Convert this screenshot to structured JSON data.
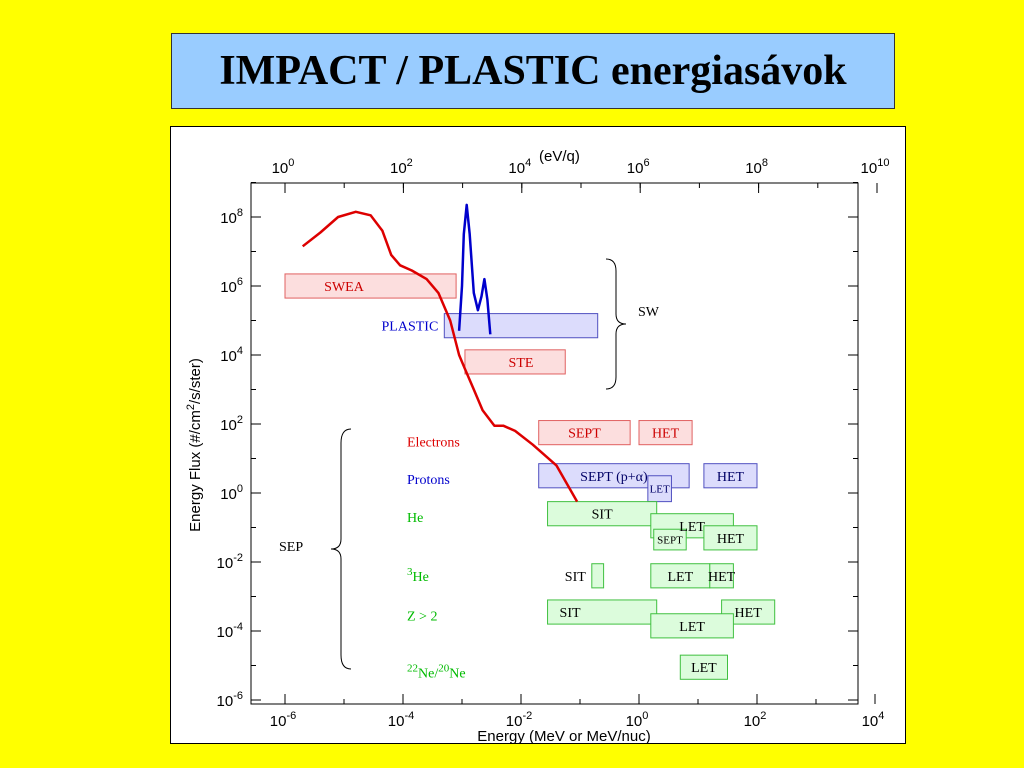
{
  "title": "IMPACT / PLASTIC energiasávok",
  "chart_data": {
    "type": "range-chart",
    "xlabel": "Energy (MeV or MeV/nuc)",
    "ylabel_parts": [
      "Energy Flux (#/cm",
      "2",
      "/s/ster)"
    ],
    "top_unit_label": "(eV/q)",
    "x_log_range": [
      -6,
      4
    ],
    "top_log_range": [
      0,
      10
    ],
    "y_log_range": [
      -6,
      9
    ],
    "bottom_ticks": [
      {
        "exp": -6,
        "label": "-6"
      },
      {
        "exp": -4,
        "label": "-4"
      },
      {
        "exp": -2,
        "label": "-2"
      },
      {
        "exp": 0,
        "label": "0"
      },
      {
        "exp": 2,
        "label": "2"
      },
      {
        "exp": 4,
        "label": "4"
      }
    ],
    "top_ticks": [
      {
        "exp": 0,
        "label": "0"
      },
      {
        "exp": 2,
        "label": "2"
      },
      {
        "exp": 4,
        "label": "4"
      },
      {
        "exp": 6,
        "label": "6"
      },
      {
        "exp": 8,
        "label": "8"
      },
      {
        "exp": 10,
        "label": "10"
      }
    ],
    "y_ticks": [
      {
        "exp": 8,
        "label": "8"
      },
      {
        "exp": 6,
        "label": "6"
      },
      {
        "exp": 4,
        "label": "4"
      },
      {
        "exp": 2,
        "label": "2"
      },
      {
        "exp": 0,
        "label": "0"
      },
      {
        "exp": -2,
        "label": "-2"
      },
      {
        "exp": -4,
        "label": "-4"
      },
      {
        "exp": -6,
        "label": "-6"
      }
    ],
    "tick_base": "10",
    "sw_curve_electrons": {
      "color": "#dd0000",
      "points": [
        [
          -5.7,
          7.15
        ],
        [
          -5.4,
          7.55
        ],
        [
          -5.1,
          8.0
        ],
        [
          -4.8,
          8.15
        ],
        [
          -4.55,
          8.05
        ],
        [
          -4.35,
          7.6
        ],
        [
          -4.2,
          6.9
        ],
        [
          -4.05,
          6.6
        ],
        [
          -3.85,
          6.45
        ],
        [
          -3.6,
          6.2
        ],
        [
          -3.4,
          5.8
        ],
        [
          -3.2,
          5.0
        ],
        [
          -3.05,
          4.0
        ],
        [
          -2.95,
          3.6
        ],
        [
          -2.8,
          3.0
        ],
        [
          -2.65,
          2.4
        ],
        [
          -2.45,
          1.95
        ],
        [
          -2.3,
          1.95
        ],
        [
          -2.1,
          1.8
        ],
        [
          -1.8,
          1.4
        ],
        [
          -1.4,
          0.8
        ],
        [
          -1.05,
          -0.25
        ]
      ]
    },
    "sw_curve_protons": {
      "color": "#0000cc",
      "points": [
        [
          -3.05,
          4.7
        ],
        [
          -3.0,
          6.0
        ],
        [
          -2.97,
          7.5
        ],
        [
          -2.92,
          8.35
        ],
        [
          -2.87,
          7.5
        ],
        [
          -2.8,
          5.8
        ],
        [
          -2.73,
          5.3
        ],
        [
          -2.67,
          5.7
        ],
        [
          -2.62,
          6.2
        ],
        [
          -2.57,
          5.6
        ],
        [
          -2.52,
          4.6
        ]
      ]
    },
    "sw_bands": [
      {
        "label": "SWEA",
        "x0": -6,
        "x1": -3.1,
        "y0": 5.65,
        "y1": 6.35,
        "kind": "red",
        "label_x": -5.0,
        "label_pos": "inside"
      },
      {
        "label": "PLASTIC",
        "x0": -3.3,
        "x1": -0.7,
        "y0": 4.5,
        "y1": 5.2,
        "kind": "blue",
        "label_x": -3.4,
        "label_pos": "left"
      },
      {
        "label": "STE",
        "x0": -2.95,
        "x1": -1.25,
        "y0": 3.45,
        "y1": 4.15,
        "kind": "red",
        "label_x": -2.0,
        "label_pos": "inside"
      }
    ],
    "sw_group_label": "SW",
    "sep_group_label": "SEP",
    "species": [
      {
        "label": "Electrons",
        "y": 1.5,
        "color": "#dd0000"
      },
      {
        "label": "Protons",
        "y": 0.4,
        "color": "#0000cc"
      },
      {
        "label": "He",
        "y": -0.7,
        "color": "#00bb00"
      },
      {
        "label_sup": "3",
        "label": "He",
        "y": -2.4,
        "color": "#00bb00"
      },
      {
        "label": "Z > 2",
        "y": -3.55,
        "color": "#00bb00"
      },
      {
        "label_sup1": "22",
        "label_a": "Ne/",
        "label_sup2": "20",
        "label_b": "Ne",
        "y": -5.2,
        "color": "#00bb00"
      }
    ],
    "sep_bands": [
      {
        "label": "SEPT",
        "x0": -1.7,
        "x1": -0.15,
        "y0": 1.4,
        "y1": 2.1,
        "kind": "red",
        "size": "n"
      },
      {
        "label": "HET",
        "x0": 0.0,
        "x1": 0.9,
        "y0": 1.4,
        "y1": 2.1,
        "kind": "red",
        "size": "n"
      },
      {
        "label": "SEPT (p+α)",
        "x0": -1.7,
        "x1": 0.85,
        "y0": 0.15,
        "y1": 0.85,
        "kind": "blue",
        "size": "n"
      },
      {
        "label": "LET",
        "x0": 0.15,
        "x1": 0.55,
        "y0": -0.25,
        "y1": 0.5,
        "kind": "blue",
        "size": "s"
      },
      {
        "label": "HET",
        "x0": 1.1,
        "x1": 2.0,
        "y0": 0.15,
        "y1": 0.85,
        "kind": "blue",
        "size": "n"
      },
      {
        "label": "SIT",
        "x0": -1.55,
        "x1": 0.3,
        "y0": -0.95,
        "y1": -0.25,
        "kind": "green",
        "size": "n"
      },
      {
        "label": "LET",
        "x0": 0.2,
        "x1": 1.6,
        "y0": -1.3,
        "y1": -0.6,
        "kind": "green",
        "size": "n"
      },
      {
        "label": "SEPT",
        "x0": 0.25,
        "x1": 0.8,
        "y0": -1.65,
        "y1": -1.05,
        "kind": "green",
        "size": "s"
      },
      {
        "label": "HET",
        "x0": 1.1,
        "x1": 2.0,
        "y0": -1.65,
        "y1": -0.95,
        "kind": "green",
        "size": "n"
      },
      {
        "label": "SIT",
        "x0": -0.8,
        "x1": -0.6,
        "y0": -2.75,
        "y1": -2.05,
        "kind": "green",
        "size": "n",
        "label_pos": "left"
      },
      {
        "label": "LET",
        "x0": 0.2,
        "x1": 1.2,
        "y0": -2.75,
        "y1": -2.05,
        "kind": "green",
        "size": "n"
      },
      {
        "label": "HET",
        "x0": 1.2,
        "x1": 1.6,
        "y0": -2.75,
        "y1": -2.05,
        "kind": "green",
        "size": "n"
      },
      {
        "label": "SIT",
        "x0": -1.55,
        "x1": 0.3,
        "y0": -3.8,
        "y1": -3.1,
        "kind": "green",
        "size": "n",
        "label_anchor": "left"
      },
      {
        "label": "HET",
        "x0": 1.4,
        "x1": 2.3,
        "y0": -3.8,
        "y1": -3.1,
        "kind": "green",
        "size": "n"
      },
      {
        "label": "LET",
        "x0": 0.2,
        "x1": 1.6,
        "y0": -4.2,
        "y1": -3.5,
        "kind": "green",
        "size": "n"
      },
      {
        "label": "LET",
        "x0": 0.7,
        "x1": 1.5,
        "y0": -5.4,
        "y1": -4.7,
        "kind": "green",
        "size": "n"
      }
    ],
    "colors": {
      "red_fill": "#fcdede",
      "red_stroke": "#e06060",
      "red_text": "#cc0000",
      "blue_fill": "#dcdcfc",
      "blue_stroke": "#5050c0",
      "blue_text": "#000066",
      "green_fill": "#dcfcdc",
      "green_stroke": "#40c040",
      "green_text": "#000000",
      "plastic_label": "#0000cc"
    }
  }
}
